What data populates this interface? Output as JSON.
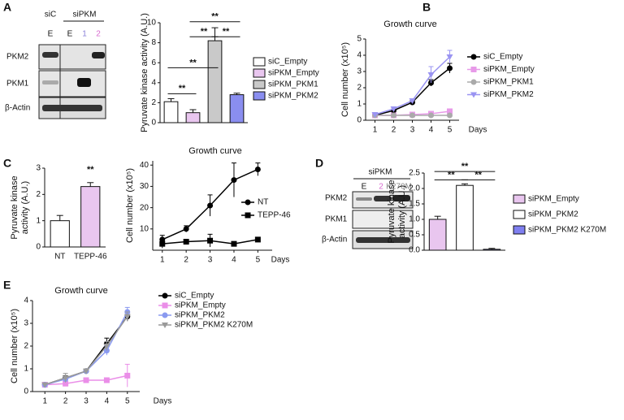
{
  "panel_labels": [
    "A",
    "B",
    "C",
    "D",
    "E"
  ],
  "blots": [
    {
      "groups": [
        "siC",
        "siPKM"
      ],
      "lanes": [
        "E",
        "E",
        "1",
        "2"
      ],
      "rows": [
        "PKM2",
        "PKM1",
        "β-Actin"
      ]
    },
    {
      "groups": [
        "siPKM"
      ],
      "lanes": [
        "E",
        "2",
        "K270M"
      ],
      "rows": [
        "PKM2",
        "PKM1",
        "β-Actin"
      ]
    }
  ],
  "chart_data": [
    {
      "type": "bar",
      "ylabel": "Pyruvate kinase activity (A.U.)",
      "categories": [
        "siC_Empty",
        "siPKM_Empty",
        "siPKM_PKM1",
        "siPKM_PKM2"
      ],
      "values": [
        2.1,
        1.0,
        8.2,
        2.8
      ],
      "errors": [
        0.3,
        0.3,
        1.3,
        0.15
      ],
      "colors": [
        "#ffffff",
        "#e9c6ef",
        "#c9c9c9",
        "#8a8ef0"
      ],
      "ylim": [
        0,
        10
      ],
      "yticks": [
        0,
        2,
        4,
        6,
        8,
        10
      ],
      "legend": "right",
      "annotations": [
        "**",
        "**",
        "**",
        "**",
        "**"
      ]
    },
    {
      "type": "line",
      "title": "Growth curve",
      "ylabel": "Cell number (x10⁵)",
      "xlabel": "Days",
      "x": [
        1,
        2,
        3,
        4,
        5
      ],
      "xlim": [
        0.5,
        5.5
      ],
      "xticks": [
        1,
        2,
        3,
        4,
        5
      ],
      "ylim": [
        0,
        5
      ],
      "yticks": [
        0,
        1,
        2,
        3,
        4,
        5
      ],
      "legend": "right",
      "series": [
        {
          "name": "siC_Empty",
          "color": "#000000",
          "marker": "circle",
          "values": [
            0.3,
            0.6,
            1.1,
            2.3,
            3.2
          ],
          "errors": [
            0.05,
            0.05,
            0.1,
            0.2,
            0.3
          ]
        },
        {
          "name": "siPKM_Empty",
          "color": "#e79ae8",
          "marker": "square",
          "values": [
            0.3,
            0.3,
            0.35,
            0.4,
            0.55
          ],
          "errors": [
            0.05,
            0.05,
            0.05,
            0.05,
            0.1
          ]
        },
        {
          "name": "siPKM_PKM1",
          "color": "#aaaaaa",
          "marker": "circle",
          "values": [
            0.3,
            0.3,
            0.3,
            0.3,
            0.3
          ],
          "errors": [
            0.05,
            0.05,
            0.05,
            0.05,
            0.05
          ]
        },
        {
          "name": "siPKM_PKM2",
          "color": "#9a94f2",
          "marker": "triangle",
          "values": [
            0.35,
            0.7,
            1.2,
            2.8,
            3.9
          ],
          "errors": [
            0.05,
            0.1,
            0.1,
            0.5,
            0.4
          ]
        }
      ]
    },
    {
      "type": "bar",
      "ylabel": [
        "Pyruvate kinase",
        "activity (A.U.)"
      ],
      "categories": [
        "NT",
        "TEPP-46"
      ],
      "values": [
        1.0,
        2.3
      ],
      "errors": [
        0.2,
        0.15
      ],
      "colors": [
        "#ffffff",
        "#e9c6ef"
      ],
      "ylim": [
        0,
        3
      ],
      "yticks": [
        0,
        1,
        2,
        3
      ],
      "category_labels": true,
      "annotations": [
        "**"
      ]
    },
    {
      "type": "line",
      "title": "Growth curve",
      "ylabel": "Cell number (x10⁵)",
      "xlabel": "Days",
      "x": [
        1,
        2,
        3,
        4,
        5
      ],
      "xlim": [
        0.6,
        5.6
      ],
      "xticks": [
        1,
        2,
        3,
        4,
        5
      ],
      "ylim": [
        0,
        42
      ],
      "yticks": [
        10,
        20,
        30,
        40
      ],
      "legend": "right",
      "series": [
        {
          "name": "NT",
          "color": "#000000",
          "marker": "circle",
          "values": [
            5,
            10,
            21,
            33,
            38
          ],
          "errors": [
            2,
            1.5,
            5,
            8,
            3
          ]
        },
        {
          "name": "TEPP-46",
          "color": "#000000",
          "marker": "square",
          "values": [
            3,
            4,
            4.5,
            3,
            5
          ],
          "errors": [
            2,
            1,
            3,
            0.5,
            0.5
          ]
        }
      ]
    },
    {
      "type": "bar",
      "ylabel": [
        "Pyruvate kinase",
        "activity (A.U.)"
      ],
      "categories": [
        "siPKM_Empty",
        "siPKM_PKM2",
        "siPKM_PKM2 K270M"
      ],
      "values": [
        1.0,
        2.1,
        0.03
      ],
      "errors": [
        0.1,
        0.05,
        0.03
      ],
      "colors": [
        "#e9c6ef",
        "#ffffff",
        "#7f7ff0"
      ],
      "ylim": [
        0,
        2.5
      ],
      "yticks": [
        {
          "value": 0,
          "label": "0.0"
        },
        {
          "value": 0.5,
          "label": "0.5"
        },
        {
          "value": 1,
          "label": "1.0"
        },
        {
          "value": 1.5,
          "label": "1.5"
        },
        {
          "value": 2,
          "label": "2.0"
        },
        {
          "value": 2.5,
          "label": "2.5"
        }
      ],
      "legend": "right",
      "annotations": [
        "**",
        "**",
        "**"
      ]
    },
    {
      "type": "line",
      "title": "Growth curve",
      "ylabel": "Cell number (x10⁵)",
      "xlabel": "Days",
      "x": [
        1,
        2,
        3,
        4,
        5
      ],
      "xlim": [
        0.4,
        5.6
      ],
      "xticks": [
        1,
        2,
        3,
        4,
        5
      ],
      "ylim": [
        0,
        4
      ],
      "yticks": [
        0,
        1,
        2,
        3,
        4
      ],
      "legend": "right",
      "series": [
        {
          "name": "siC_Empty",
          "color": "#000000",
          "marker": "circle",
          "values": [
            0.3,
            0.6,
            0.9,
            2.1,
            3.3
          ],
          "errors": [
            0.05,
            0.1,
            0.1,
            0.25,
            0.2
          ]
        },
        {
          "name": "siPKM_Empty",
          "color": "#ea8ee8",
          "marker": "square",
          "values": [
            0.3,
            0.35,
            0.5,
            0.5,
            0.7
          ],
          "errors": [
            0.05,
            0.05,
            0.05,
            0.05,
            0.5
          ]
        },
        {
          "name": "siPKM_PKM2",
          "color": "#8a9af0",
          "marker": "circle",
          "values": [
            0.3,
            0.55,
            0.9,
            1.8,
            3.5
          ],
          "errors": [
            0.05,
            0.1,
            0.1,
            0.2,
            0.2
          ]
        },
        {
          "name": "siPKM_PKM2 K270M",
          "color": "#9a9a9a",
          "marker": "triangle",
          "values": [
            0.3,
            0.6,
            0.9,
            2.0,
            3.3
          ],
          "errors": [
            0.05,
            0.2,
            0.1,
            0.2,
            0.2
          ]
        }
      ]
    }
  ]
}
